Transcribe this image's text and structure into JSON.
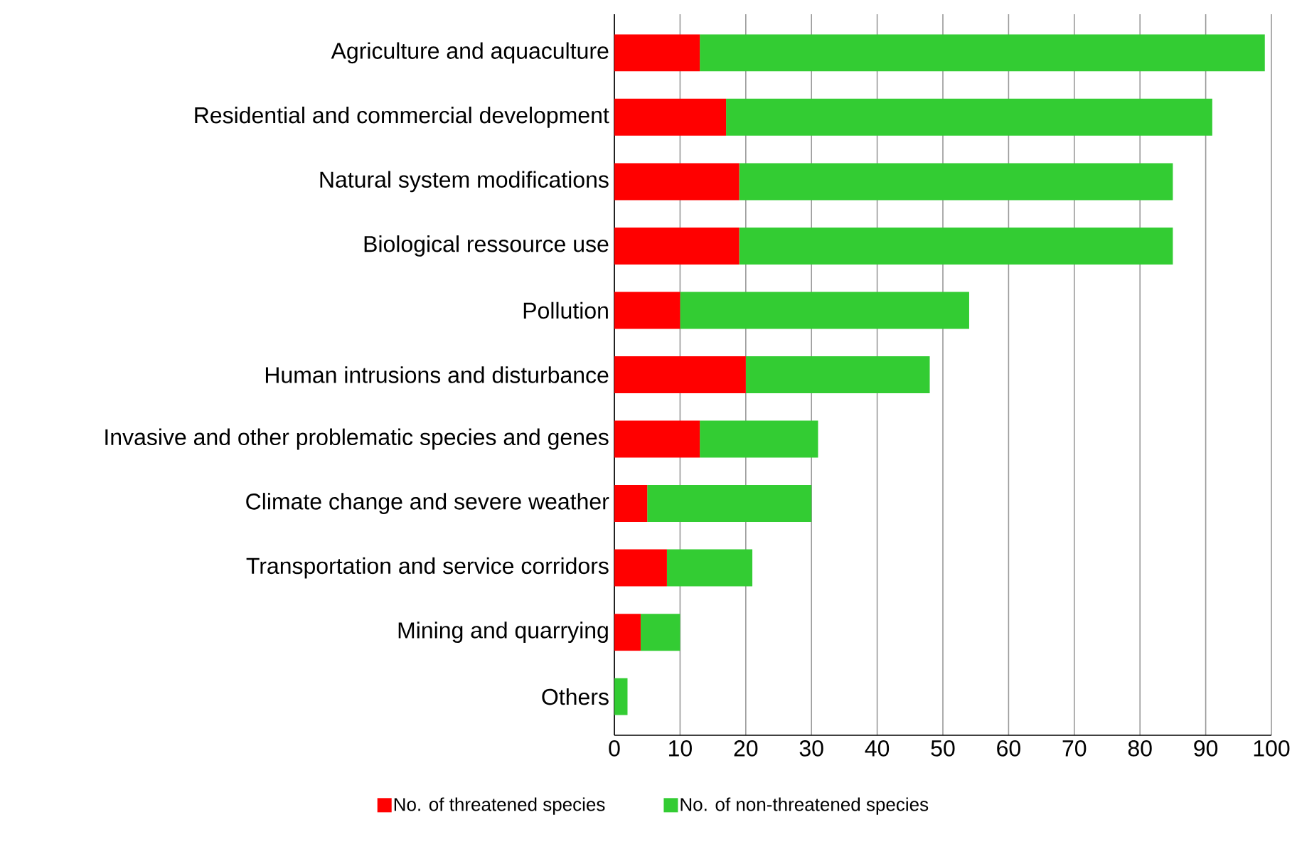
{
  "chart_data": {
    "type": "bar",
    "orientation": "horizontal",
    "stacked": true,
    "categories": [
      "Agriculture and aquaculture",
      "Residential and commercial development",
      "Natural system modifications",
      "Biological ressource use",
      "Pollution",
      "Human intrusions and disturbance",
      "Invasive and other problematic species and genes",
      "Climate change and severe weather",
      "Transportation and service corridors",
      "Mining and quarrying",
      "Others"
    ],
    "series": [
      {
        "name": "No. of threatened species",
        "color": "#ff0000",
        "values": [
          13,
          17,
          19,
          19,
          10,
          20,
          13,
          5,
          8,
          4,
          0
        ]
      },
      {
        "name": "No. of non-threatened species",
        "color": "#33cc33",
        "values": [
          86,
          74,
          66,
          66,
          44,
          28,
          18,
          25,
          13,
          6,
          2
        ]
      }
    ],
    "xlim": [
      0,
      100
    ],
    "xticks": [
      0,
      10,
      20,
      30,
      40,
      50,
      60,
      70,
      80,
      90,
      100
    ],
    "grid": "x",
    "legend": "bottom"
  }
}
